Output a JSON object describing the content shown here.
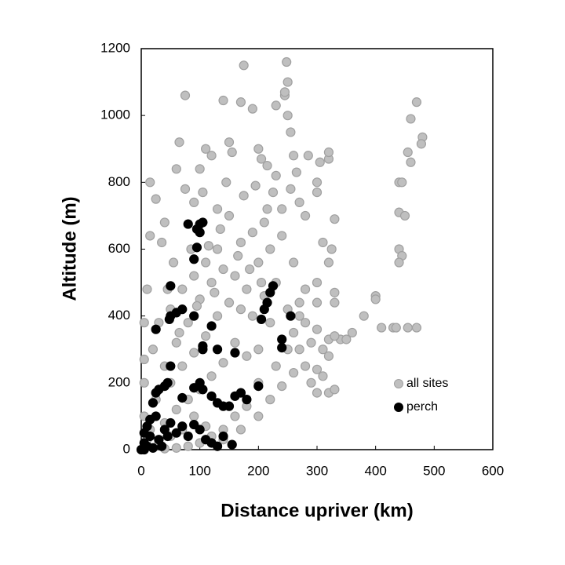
{
  "chart_data": {
    "type": "scatter",
    "x_label": "Distance upriver (km)",
    "y_label": "Altitude (m)",
    "xlim": [
      0,
      600
    ],
    "xticks": [
      0,
      100,
      200,
      300,
      400,
      500,
      600
    ],
    "ylim": [
      0,
      1200
    ],
    "yticks": [
      0,
      200,
      400,
      600,
      800,
      1000,
      1200
    ],
    "grid": false,
    "legend": "lower right",
    "series": [
      {
        "name": "all sites",
        "color": "#bfbfbf",
        "x": [
          175,
          248,
          250,
          245,
          245,
          75,
          140,
          170,
          190,
          230,
          250,
          255,
          470,
          460,
          480,
          478,
          455,
          460,
          440,
          445,
          440,
          450,
          440,
          445,
          440,
          400,
          400,
          380,
          410,
          430,
          455,
          470,
          435,
          340,
          300,
          320,
          300,
          320,
          290,
          330,
          330,
          320,
          320,
          300,
          300,
          310,
          300,
          280,
          270,
          260,
          250,
          230,
          200,
          180,
          160,
          140,
          120,
          100,
          80,
          60,
          40,
          20,
          10,
          5,
          5,
          5,
          5,
          10,
          15,
          15,
          25,
          40,
          60,
          65,
          75,
          90,
          100,
          110,
          120,
          130,
          150,
          155,
          200,
          205,
          215,
          230,
          260,
          265,
          270,
          280,
          240,
          210,
          190,
          170,
          150,
          130,
          110,
          90,
          70,
          50,
          30,
          20,
          40,
          60,
          80,
          100,
          120,
          140,
          160,
          180,
          200,
          220,
          240,
          260,
          280,
          300,
          320,
          350,
          220,
          200,
          180,
          160,
          140,
          120,
          100,
          80,
          60,
          40,
          25,
          15,
          50,
          70,
          90,
          110,
          130,
          150,
          170,
          190,
          210,
          230,
          250,
          270,
          290,
          310,
          330,
          360,
          260,
          240,
          220,
          200,
          170,
          140,
          110,
          90,
          70,
          50,
          30,
          10,
          115,
          135,
          175,
          195,
          225,
          285,
          305,
          255,
          165,
          125,
          95,
          55,
          35,
          45,
          65,
          85,
          185,
          205,
          105,
          145,
          215,
          325,
          320,
          330,
          300,
          310,
          330,
          280,
          270
        ],
        "values": [
          1150,
          1160,
          1100,
          1060,
          1070,
          1060,
          1045,
          1040,
          1020,
          1030,
          1000,
          950,
          1040,
          990,
          935,
          915,
          890,
          860,
          800,
          800,
          710,
          700,
          600,
          580,
          560,
          460,
          450,
          400,
          365,
          365,
          365,
          365,
          365,
          330,
          240,
          280,
          170,
          170,
          200,
          440,
          690,
          870,
          890,
          800,
          770,
          620,
          500,
          480,
          440,
          350,
          300,
          250,
          200,
          130,
          100,
          60,
          40,
          20,
          10,
          5,
          3,
          5,
          30,
          100,
          200,
          270,
          380,
          480,
          640,
          800,
          750,
          680,
          840,
          920,
          780,
          740,
          840,
          900,
          880,
          720,
          920,
          890,
          900,
          870,
          850,
          820,
          880,
          830,
          740,
          700,
          720,
          680,
          650,
          620,
          700,
          600,
          560,
          520,
          480,
          420,
          380,
          300,
          250,
          320,
          380,
          450,
          500,
          540,
          520,
          480,
          560,
          600,
          640,
          560,
          380,
          360,
          330,
          330,
          380,
          300,
          280,
          320,
          260,
          220,
          180,
          150,
          120,
          80,
          150,
          60,
          200,
          250,
          290,
          340,
          400,
          440,
          420,
          400,
          460,
          500,
          420,
          400,
          320,
          300,
          340,
          350,
          230,
          190,
          150,
          100,
          60,
          30,
          70,
          100,
          60,
          40,
          20,
          10,
          610,
          660,
          760,
          790,
          770,
          880,
          860,
          780,
          580,
          470,
          430,
          560,
          620,
          480,
          350,
          600,
          540,
          500,
          770,
          800,
          720,
          600,
          560,
          470,
          440,
          220,
          180,
          250,
          300
        ]
      },
      {
        "name": "perch",
        "color": "#000000",
        "x": [
          80,
          100,
          105,
          100,
          95,
          95,
          90,
          225,
          220,
          215,
          210,
          205,
          255,
          240,
          240,
          50,
          70,
          90,
          60,
          50,
          48,
          25,
          120,
          105,
          105,
          130,
          160,
          50,
          45,
          40,
          30,
          25,
          20,
          70,
          90,
          100,
          105,
          120,
          130,
          140,
          150,
          160,
          170,
          180,
          200,
          25,
          15,
          10,
          5,
          5,
          10,
          20,
          30,
          40,
          50,
          60,
          70,
          80,
          90,
          100,
          110,
          120,
          130,
          140,
          155,
          5,
          0,
          15,
          35,
          45
        ],
        "values": [
          675,
          675,
          680,
          650,
          660,
          605,
          570,
          490,
          470,
          440,
          420,
          390,
          400,
          330,
          305,
          490,
          420,
          400,
          410,
          400,
          390,
          360,
          370,
          310,
          300,
          300,
          290,
          250,
          200,
          190,
          180,
          170,
          140,
          155,
          185,
          200,
          180,
          160,
          140,
          130,
          130,
          160,
          170,
          150,
          190,
          100,
          90,
          70,
          50,
          20,
          10,
          5,
          30,
          60,
          80,
          50,
          70,
          40,
          75,
          60,
          30,
          20,
          10,
          40,
          15,
          0,
          0,
          40,
          10,
          40
        ]
      }
    ]
  }
}
